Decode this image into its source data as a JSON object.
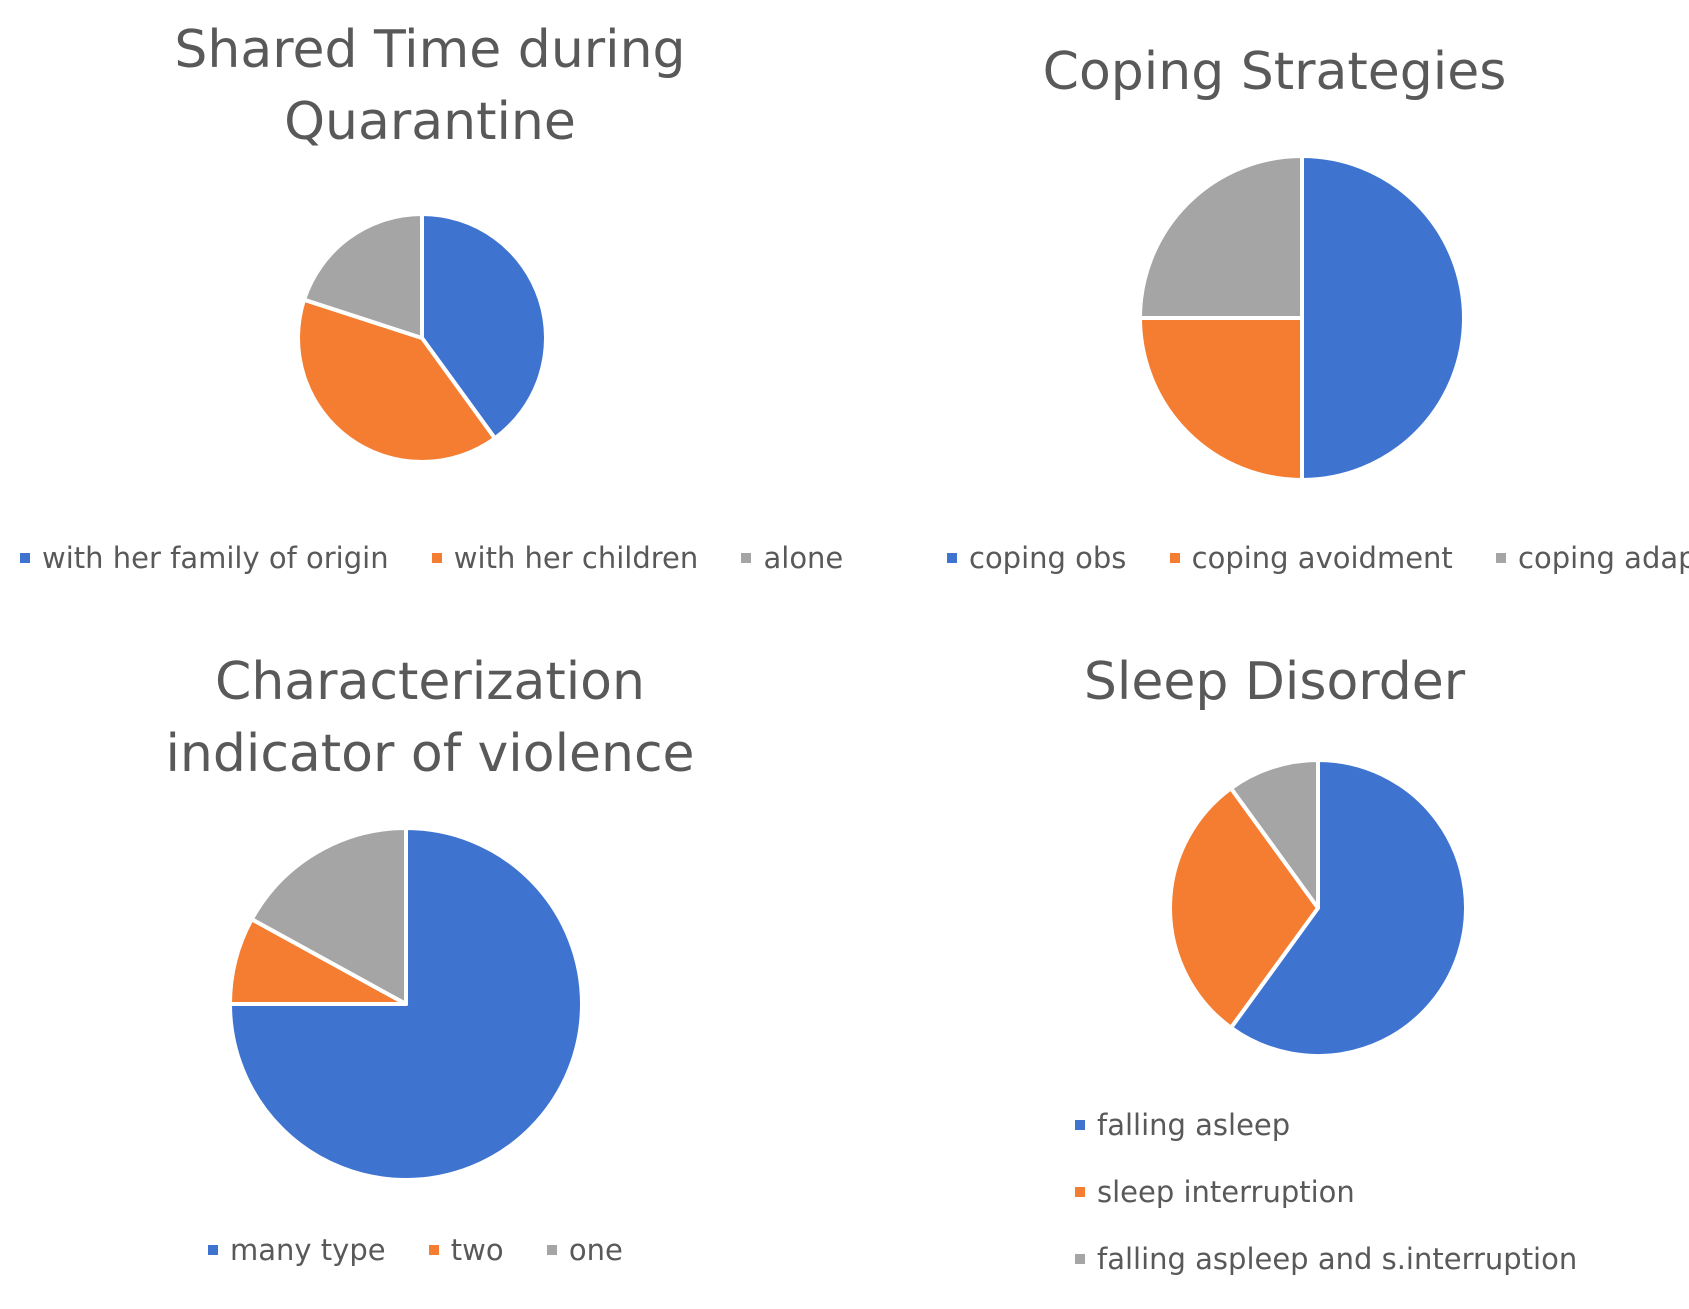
{
  "colors": {
    "blue": "#4472C4",
    "orange": "#ED7D31",
    "gray": "#A5A5A5"
  },
  "chart_data": [
    {
      "type": "pie",
      "title": "Shared Time during Quarantine",
      "legend_position": "bottom",
      "categories": [
        "with her family of origin",
        "with her children",
        "alone"
      ],
      "values": [
        40,
        40,
        20
      ],
      "colors": [
        "#3E74D0",
        "#F47D32",
        "#A5A5A5"
      ]
    },
    {
      "type": "pie",
      "title": "Coping Strategies",
      "legend_position": "bottom",
      "categories": [
        "coping obs",
        "coping avoidment",
        "coping adapt"
      ],
      "values": [
        50,
        25,
        25
      ],
      "colors": [
        "#3E74D0",
        "#F47D32",
        "#A5A5A5"
      ]
    },
    {
      "type": "pie",
      "title": "Characterization indicator of violence",
      "legend_position": "bottom",
      "categories": [
        "many type",
        "two",
        "one"
      ],
      "values": [
        75,
        8,
        17
      ],
      "colors": [
        "#3E74D0",
        "#F47D32",
        "#A5A5A5"
      ]
    },
    {
      "type": "pie",
      "title": "Sleep Disorder",
      "legend_position": "bottom",
      "categories": [
        "falling asleep",
        "sleep interruption",
        "falling aspleep and s.interruption"
      ],
      "values": [
        60,
        30,
        10
      ],
      "colors": [
        "#3E74D0",
        "#F47D32",
        "#A5A5A5"
      ]
    }
  ]
}
